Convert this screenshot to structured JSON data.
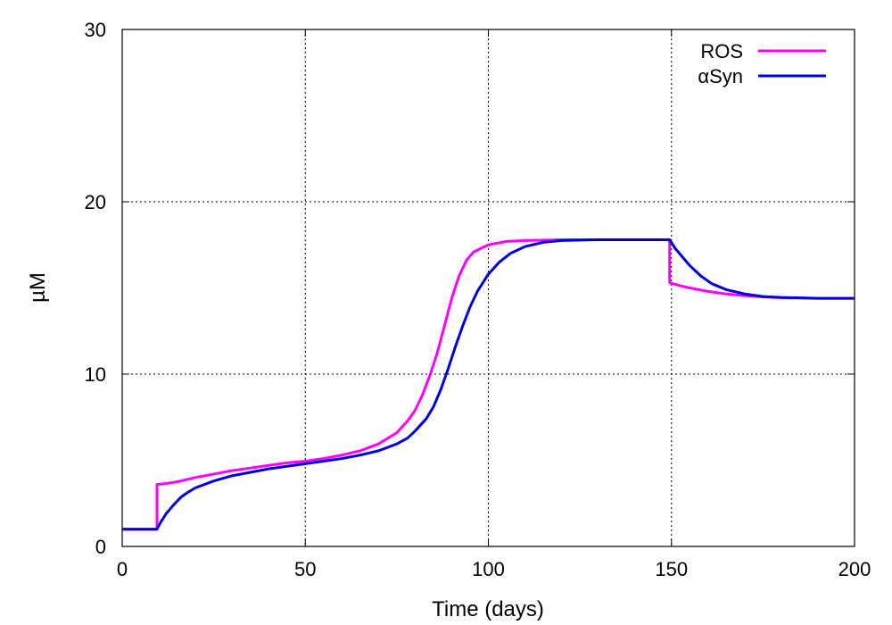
{
  "chart_data": {
    "type": "line",
    "title": "",
    "xlabel": "Time (days)",
    "ylabel": "µM",
    "xlim": [
      0,
      200
    ],
    "ylim": [
      0,
      30
    ],
    "xticks": [
      "0",
      "50",
      "100",
      "150",
      "200"
    ],
    "yticks": [
      "0",
      "10",
      "20",
      "30"
    ],
    "grid": true,
    "legend_position": "top-right",
    "series": [
      {
        "name": "ROS",
        "color": "#ff00ff",
        "points": [
          [
            0,
            1.0
          ],
          [
            9.5,
            1.0
          ],
          [
            9.5,
            3.6
          ],
          [
            12,
            3.65
          ],
          [
            15,
            3.75
          ],
          [
            20,
            4.0
          ],
          [
            25,
            4.2
          ],
          [
            30,
            4.4
          ],
          [
            35,
            4.55
          ],
          [
            40,
            4.7
          ],
          [
            45,
            4.85
          ],
          [
            50,
            4.95
          ],
          [
            55,
            5.1
          ],
          [
            60,
            5.3
          ],
          [
            65,
            5.55
          ],
          [
            70,
            5.95
          ],
          [
            75,
            6.6
          ],
          [
            78,
            7.3
          ],
          [
            80,
            7.9
          ],
          [
            82,
            8.8
          ],
          [
            84,
            9.9
          ],
          [
            86,
            11.2
          ],
          [
            88,
            12.8
          ],
          [
            90,
            14.4
          ],
          [
            92,
            15.7
          ],
          [
            94,
            16.6
          ],
          [
            96,
            17.1
          ],
          [
            100,
            17.5
          ],
          [
            105,
            17.7
          ],
          [
            110,
            17.75
          ],
          [
            120,
            17.8
          ],
          [
            130,
            17.8
          ],
          [
            140,
            17.8
          ],
          [
            149.5,
            17.8
          ],
          [
            149.5,
            15.3
          ],
          [
            152,
            15.15
          ],
          [
            155,
            15.0
          ],
          [
            160,
            14.8
          ],
          [
            165,
            14.65
          ],
          [
            170,
            14.55
          ],
          [
            175,
            14.48
          ],
          [
            180,
            14.43
          ],
          [
            190,
            14.4
          ],
          [
            200,
            14.4
          ]
        ]
      },
      {
        "name": "αSyn",
        "color": "#0000dd",
        "points": [
          [
            0,
            1.0
          ],
          [
            9.5,
            1.0
          ],
          [
            10.5,
            1.4
          ],
          [
            12,
            1.9
          ],
          [
            14,
            2.4
          ],
          [
            16,
            2.85
          ],
          [
            18,
            3.15
          ],
          [
            20,
            3.4
          ],
          [
            25,
            3.8
          ],
          [
            30,
            4.1
          ],
          [
            35,
            4.3
          ],
          [
            40,
            4.5
          ],
          [
            45,
            4.65
          ],
          [
            50,
            4.8
          ],
          [
            55,
            4.95
          ],
          [
            60,
            5.1
          ],
          [
            65,
            5.3
          ],
          [
            70,
            5.55
          ],
          [
            75,
            5.95
          ],
          [
            78,
            6.3
          ],
          [
            80,
            6.7
          ],
          [
            83,
            7.4
          ],
          [
            85,
            8.1
          ],
          [
            87,
            9.1
          ],
          [
            89,
            10.3
          ],
          [
            91,
            11.6
          ],
          [
            93,
            12.8
          ],
          [
            95,
            13.9
          ],
          [
            97,
            14.8
          ],
          [
            100,
            15.8
          ],
          [
            103,
            16.5
          ],
          [
            106,
            17.0
          ],
          [
            110,
            17.4
          ],
          [
            115,
            17.65
          ],
          [
            120,
            17.75
          ],
          [
            130,
            17.8
          ],
          [
            140,
            17.8
          ],
          [
            149.5,
            17.8
          ],
          [
            151,
            17.3
          ],
          [
            153,
            16.8
          ],
          [
            155,
            16.3
          ],
          [
            158,
            15.7
          ],
          [
            161,
            15.25
          ],
          [
            165,
            14.9
          ],
          [
            170,
            14.65
          ],
          [
            175,
            14.5
          ],
          [
            180,
            14.45
          ],
          [
            190,
            14.4
          ],
          [
            200,
            14.4
          ]
        ]
      }
    ]
  }
}
